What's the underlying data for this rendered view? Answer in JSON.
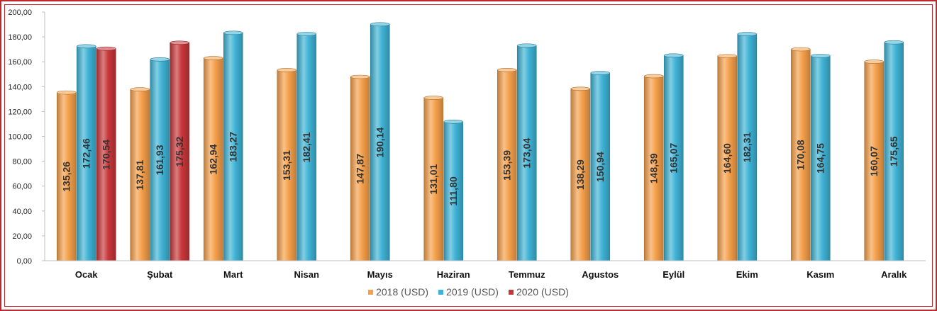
{
  "chart_data": {
    "type": "bar",
    "title": "",
    "xlabel": "",
    "ylabel": "",
    "ylim": [
      0,
      200
    ],
    "ytick_step": 20,
    "ytick_labels": [
      "0,00",
      "20,00",
      "40,00",
      "60,00",
      "80,00",
      "100,00",
      "120,00",
      "140,00",
      "160,00",
      "180,00",
      "200,00"
    ],
    "grid": false,
    "legend_position": "bottom",
    "categories": [
      "Ocak",
      "Şubat",
      "Mart",
      "Nisan",
      "Mayıs",
      "Haziran",
      "Temmuz",
      "Agustos",
      "Eylül",
      "Ekim",
      "Kasım",
      "Aralık"
    ],
    "series": [
      {
        "name": "2018 (USD)",
        "color": "#f5a04a",
        "values": [
          135.26,
          137.81,
          162.94,
          153.31,
          147.87,
          131.01,
          153.39,
          138.29,
          148.39,
          164.6,
          170.08,
          160.07
        ],
        "labels": [
          "135,26",
          "137,81",
          "162,94",
          "153,31",
          "147,87",
          "131,01",
          "153,39",
          "138,29",
          "148,39",
          "164,60",
          "170,08",
          "160,07"
        ]
      },
      {
        "name": "2019 (USD)",
        "color": "#3fb3d6",
        "values": [
          172.46,
          161.93,
          183.27,
          182.41,
          190.14,
          111.8,
          173.04,
          150.94,
          165.07,
          182.31,
          164.75,
          175.65
        ],
        "labels": [
          "172,46",
          "161,93",
          "183,27",
          "182,41",
          "190,14",
          "111,80",
          "173,04",
          "150,94",
          "165,07",
          "182,31",
          "164,75",
          "175,65"
        ]
      },
      {
        "name": "2020 (USD)",
        "color": "#c8373a",
        "values": [
          170.54,
          175.32,
          null,
          null,
          null,
          null,
          null,
          null,
          null,
          null,
          null,
          null
        ],
        "labels": [
          "170,54",
          "175,32",
          "",
          "",
          "",
          "",
          "",
          "",
          "",
          "",
          "",
          ""
        ]
      }
    ]
  }
}
